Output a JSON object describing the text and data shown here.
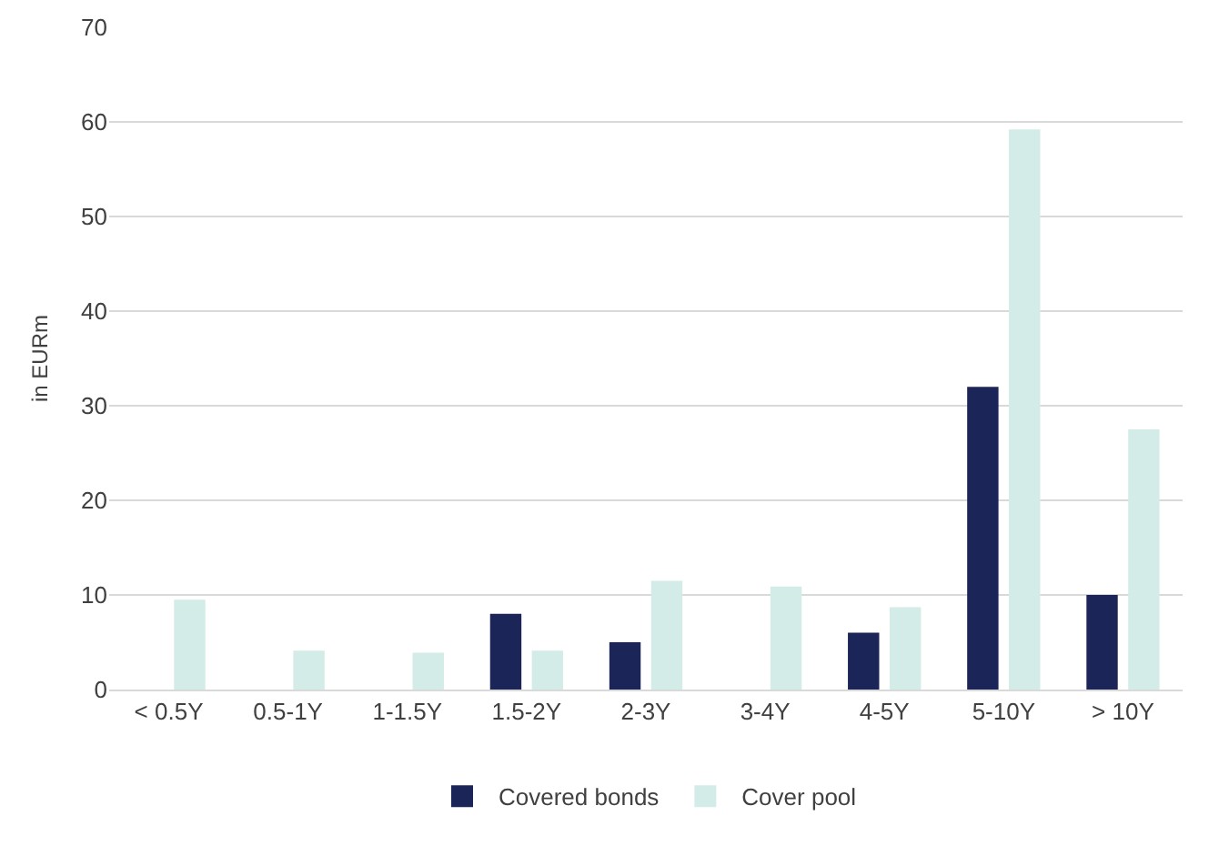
{
  "chart_data": {
    "type": "bar",
    "ylabel": "in EURm",
    "categories": [
      "< 0.5Y",
      "0.5-1Y",
      "1-1.5Y",
      "1.5-2Y",
      "2-3Y",
      "3-4Y",
      "4-5Y",
      "5-10Y",
      "> 10Y"
    ],
    "series": [
      {
        "name": "Covered bonds",
        "color": "#1c2558",
        "values": [
          0,
          0,
          0,
          8,
          5,
          0,
          6,
          32,
          10
        ]
      },
      {
        "name": "Cover pool",
        "color": "#d3ece7",
        "values": [
          9.5,
          4.1,
          3.9,
          4.1,
          11.5,
          10.9,
          8.7,
          59.2,
          27.5
        ]
      }
    ],
    "ylim": [
      0,
      70
    ],
    "yticks": [
      0,
      10,
      20,
      30,
      40,
      50,
      60,
      70
    ],
    "grid": "y",
    "legend": "bottom"
  }
}
